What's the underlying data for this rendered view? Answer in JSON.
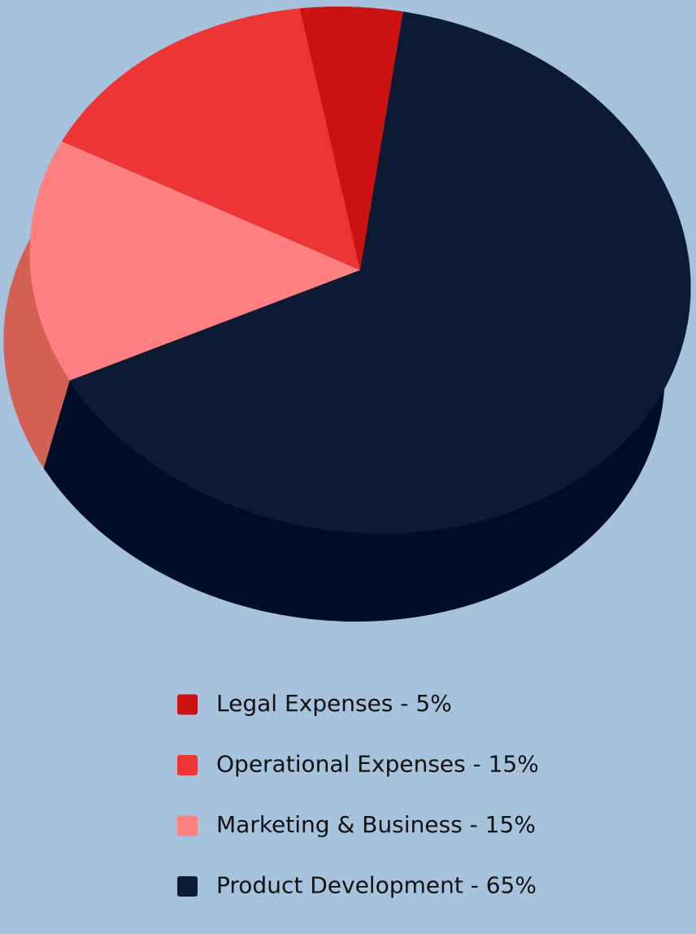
{
  "chart_data": {
    "type": "pie",
    "categories": [
      "Legal Expenses - 5%",
      "Operational Expenses - 15%",
      "Marketing & Business - 15%",
      "Product Development - 65%"
    ],
    "values": [
      5,
      15,
      15,
      65
    ],
    "colors": [
      "#cc1111",
      "#ee3535",
      "#ff8080",
      "#0d1a33"
    ],
    "side_colors": [
      "#a30d0d",
      "#c42424",
      "#d45f55",
      "#000d26"
    ]
  }
}
